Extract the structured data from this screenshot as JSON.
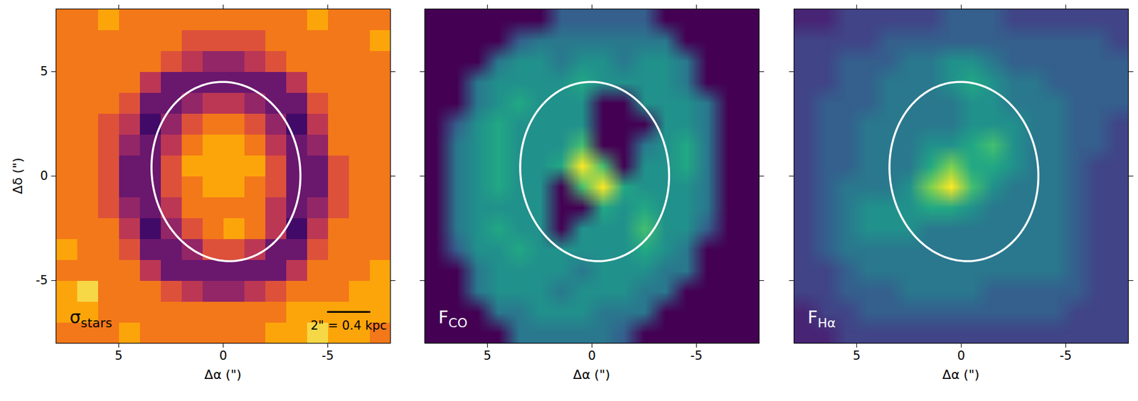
{
  "chart_data": [
    {
      "type": "heatmap",
      "label": {
        "text": "σ",
        "sub": "stars"
      },
      "xlabel": "Δα (\")",
      "ylabel": "Δδ (\")",
      "xlim": [
        8,
        -8
      ],
      "ylim": [
        -8,
        8
      ],
      "xticks": [
        5,
        0,
        -5
      ],
      "yticks": [
        -5,
        0,
        5
      ],
      "color": "inferno",
      "clim": [
        0,
        10
      ],
      "values": [
        [
          7,
          7,
          8,
          7,
          7,
          7,
          7,
          7,
          7,
          7,
          7,
          7,
          8,
          7,
          7,
          7
        ],
        [
          7,
          7,
          7,
          7,
          7,
          7,
          6,
          6,
          6,
          6,
          7,
          7,
          7,
          7,
          7,
          8
        ],
        [
          7,
          7,
          7,
          7,
          7,
          6,
          5,
          4,
          4,
          5,
          6,
          7,
          7,
          7,
          7,
          7
        ],
        [
          7,
          7,
          7,
          7,
          5,
          3,
          3,
          3,
          3,
          3,
          3,
          5,
          7,
          7,
          7,
          7
        ],
        [
          7,
          7,
          7,
          6,
          3,
          3,
          4,
          5,
          5,
          4,
          3,
          3,
          6,
          7,
          7,
          7
        ],
        [
          7,
          7,
          6,
          5,
          2,
          4,
          6,
          7,
          7,
          6,
          4,
          2,
          5,
          7,
          7,
          7
        ],
        [
          7,
          7,
          6,
          4,
          3,
          5,
          7,
          8,
          8,
          7,
          5,
          3,
          4,
          7,
          7,
          7
        ],
        [
          7,
          7,
          6,
          3,
          3,
          6,
          8,
          8,
          8,
          8,
          6,
          3,
          3,
          6,
          7,
          7
        ],
        [
          7,
          7,
          6,
          3,
          3,
          6,
          7,
          8,
          8,
          7,
          6,
          3,
          3,
          6,
          7,
          7
        ],
        [
          7,
          7,
          6,
          4,
          3,
          5,
          7,
          7,
          7,
          7,
          5,
          3,
          4,
          6,
          7,
          7
        ],
        [
          7,
          7,
          7,
          5,
          2,
          4,
          6,
          7,
          8,
          7,
          5,
          2,
          5,
          7,
          7,
          7
        ],
        [
          8,
          7,
          7,
          6,
          3,
          3,
          4,
          6,
          6,
          5,
          3,
          3,
          6,
          7,
          7,
          7
        ],
        [
          7,
          7,
          7,
          7,
          5,
          3,
          3,
          3,
          3,
          3,
          3,
          5,
          7,
          7,
          7,
          8
        ],
        [
          8,
          9,
          7,
          7,
          7,
          6,
          5,
          4,
          4,
          5,
          6,
          7,
          7,
          7,
          8,
          8
        ],
        [
          8,
          8,
          7,
          7,
          7,
          7,
          7,
          7,
          7,
          7,
          7,
          8,
          8,
          8,
          8,
          8
        ],
        [
          7,
          7,
          7,
          8,
          7,
          7,
          7,
          7,
          7,
          7,
          8,
          8,
          9,
          8,
          8,
          7
        ]
      ],
      "ellipse": {
        "x": -0.13,
        "y": 0.22,
        "major": 4.3,
        "minor": 3.55,
        "pa": 7
      },
      "scale_bar": {
        "x": -5,
        "y": -6.5,
        "length": 2,
        "label": "2\" = 0.4 kpc"
      }
    },
    {
      "type": "heatmap",
      "label": {
        "text": "F",
        "sub": "CO"
      },
      "xlabel": "Δα (\")",
      "xlim": [
        8,
        -8
      ],
      "ylim": [
        -8,
        8
      ],
      "xticks": [
        5,
        0,
        -5
      ],
      "yticks": [
        -5,
        0,
        5
      ],
      "tick_labels": "x",
      "color": "viridis",
      "clim": [
        0,
        10
      ],
      "values": [
        [
          0,
          0,
          0,
          0,
          0,
          0,
          3,
          3,
          3,
          3,
          3,
          0,
          0,
          0,
          0,
          0
        ],
        [
          0,
          0,
          0,
          0,
          3,
          4,
          4,
          4,
          4,
          4,
          4,
          4,
          0,
          0,
          0,
          0
        ],
        [
          0,
          0,
          0,
          4,
          5,
          5,
          4,
          5,
          5,
          4,
          5,
          5,
          4,
          0,
          0,
          0
        ],
        [
          0,
          0,
          4,
          5,
          5,
          5,
          5,
          6,
          5,
          5,
          5,
          5,
          4,
          0,
          0,
          0
        ],
        [
          0,
          0,
          4,
          5,
          6,
          5,
          5,
          5,
          0,
          0,
          5,
          5,
          5,
          4,
          0,
          0
        ],
        [
          0,
          3,
          5,
          6,
          5,
          5,
          5,
          5,
          0,
          0,
          0,
          5,
          5,
          4,
          0,
          0
        ],
        [
          0,
          4,
          5,
          6,
          5,
          5,
          5,
          7,
          0,
          0,
          4,
          5,
          6,
          4,
          0,
          0
        ],
        [
          0,
          4,
          5,
          6,
          5,
          5,
          6,
          10,
          7,
          0,
          5,
          5,
          6,
          4,
          0,
          0
        ],
        [
          0,
          4,
          5,
          6,
          5,
          5,
          0,
          7,
          10,
          6,
          5,
          5,
          5,
          4,
          0,
          0
        ],
        [
          0,
          4,
          5,
          5,
          5,
          5,
          0,
          0,
          6,
          5,
          6,
          5,
          5,
          4,
          0,
          0
        ],
        [
          0,
          4,
          5,
          6,
          5,
          5,
          0,
          5,
          5,
          5,
          7,
          5,
          5,
          3,
          0,
          0
        ],
        [
          0,
          3,
          5,
          5,
          6,
          5,
          5,
          5,
          5,
          5,
          6,
          5,
          4,
          0,
          0,
          0
        ],
        [
          0,
          0,
          4,
          5,
          5,
          5,
          5,
          4,
          5,
          5,
          5,
          4,
          4,
          0,
          0,
          0
        ],
        [
          0,
          0,
          4,
          5,
          5,
          5,
          4,
          5,
          5,
          5,
          4,
          4,
          0,
          0,
          0,
          0
        ],
        [
          0,
          0,
          0,
          4,
          4,
          5,
          5,
          5,
          4,
          4,
          4,
          0,
          0,
          0,
          0,
          0
        ],
        [
          0,
          0,
          0,
          0,
          4,
          4,
          4,
          4,
          4,
          3,
          0,
          0,
          0,
          0,
          0,
          0
        ]
      ],
      "ellipse": {
        "x": -0.13,
        "y": 0.22,
        "major": 4.3,
        "minor": 3.55,
        "pa": 7
      }
    },
    {
      "type": "heatmap",
      "label": {
        "text": "F",
        "sub": "Hα"
      },
      "xlabel": "Δα (\")",
      "xlim": [
        8,
        -8
      ],
      "ylim": [
        -8,
        8
      ],
      "xticks": [
        5,
        0,
        -5
      ],
      "yticks": [
        -5,
        0,
        5
      ],
      "tick_labels": "x",
      "color": "viridis",
      "clim": [
        0,
        10
      ],
      "values": [
        [
          1,
          1,
          2,
          2,
          2,
          2,
          2,
          3,
          3,
          3,
          2,
          2,
          2,
          2,
          2,
          2
        ],
        [
          2,
          2,
          2,
          2,
          3,
          3,
          3,
          3,
          3,
          3,
          3,
          3,
          3,
          3,
          3,
          2
        ],
        [
          2,
          2,
          3,
          3,
          3,
          4,
          4,
          5,
          5,
          4,
          3,
          3,
          3,
          3,
          3,
          3
        ],
        [
          2,
          2,
          3,
          3,
          4,
          4,
          4,
          5,
          6,
          5,
          4,
          4,
          3,
          3,
          3,
          3
        ],
        [
          2,
          3,
          3,
          3,
          4,
          4,
          4,
          4,
          5,
          5,
          4,
          4,
          4,
          3,
          3,
          3
        ],
        [
          2,
          3,
          3,
          4,
          4,
          4,
          4,
          4,
          5,
          5,
          5,
          4,
          4,
          3,
          3,
          2
        ],
        [
          2,
          3,
          3,
          4,
          4,
          4,
          5,
          5,
          6,
          7,
          5,
          4,
          4,
          3,
          3,
          2
        ],
        [
          2,
          3,
          3,
          4,
          4,
          4,
          6,
          8,
          6,
          6,
          5,
          4,
          4,
          3,
          2,
          2
        ],
        [
          2,
          3,
          4,
          4,
          4,
          5,
          8,
          10,
          7,
          5,
          4,
          4,
          4,
          3,
          2,
          2
        ],
        [
          2,
          3,
          4,
          5,
          5,
          5,
          6,
          6,
          5,
          4,
          4,
          4,
          4,
          3,
          2,
          2
        ],
        [
          2,
          3,
          4,
          5,
          5,
          5,
          4,
          4,
          4,
          4,
          4,
          4,
          4,
          3,
          2,
          2
        ],
        [
          2,
          3,
          4,
          4,
          4,
          4,
          4,
          4,
          4,
          4,
          4,
          4,
          4,
          3,
          2,
          2
        ],
        [
          2,
          2,
          3,
          4,
          4,
          4,
          4,
          4,
          4,
          4,
          4,
          4,
          4,
          3,
          2,
          2
        ],
        [
          2,
          2,
          3,
          3,
          3,
          4,
          4,
          4,
          4,
          3,
          3,
          3,
          3,
          3,
          2,
          2
        ],
        [
          1,
          2,
          2,
          3,
          3,
          3,
          3,
          3,
          3,
          3,
          3,
          3,
          3,
          2,
          2,
          2
        ],
        [
          1,
          1,
          2,
          2,
          2,
          2,
          2,
          2,
          2,
          2,
          2,
          2,
          2,
          2,
          2,
          2
        ]
      ],
      "ellipse": {
        "x": -0.13,
        "y": 0.22,
        "major": 4.3,
        "minor": 3.55,
        "pa": 7
      }
    }
  ]
}
